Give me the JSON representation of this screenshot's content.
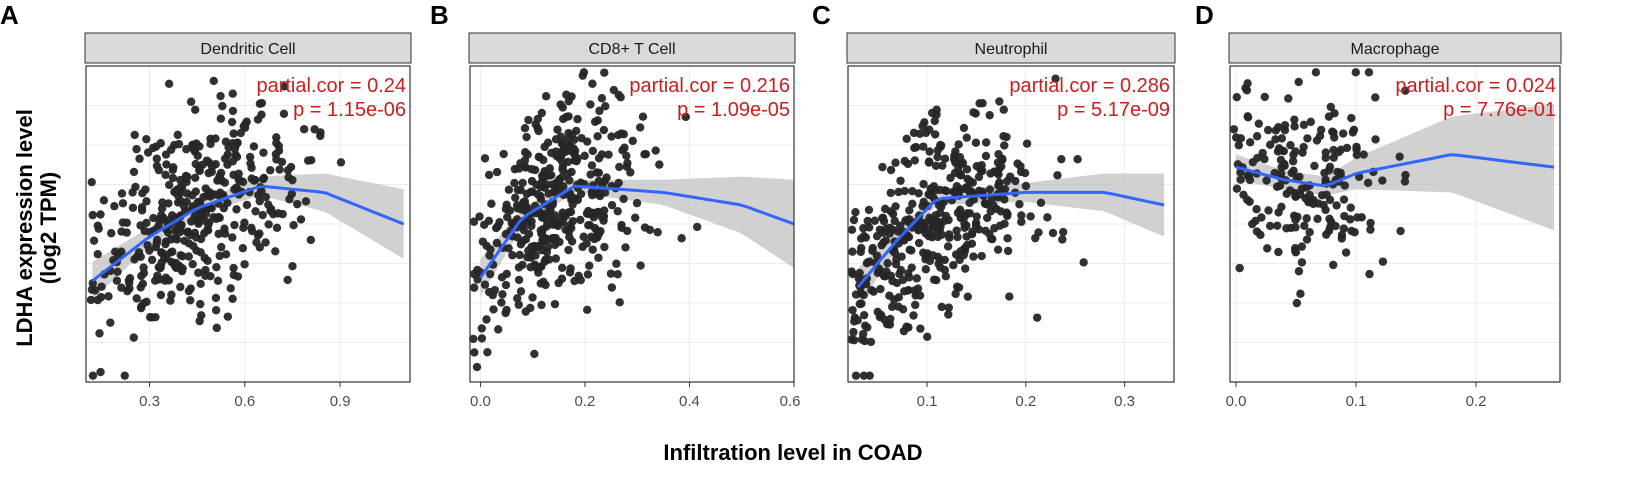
{
  "figure": {
    "ylabel_line1": "LDHA expression level",
    "ylabel_line2": "(log2 TPM)",
    "xlabel": "Infiltration level in COAD"
  },
  "colors": {
    "point": "#262626",
    "smooth": "#3366ff",
    "ribbon": "#bdbdbd",
    "annotation": "#c8201e",
    "strip_fill": "#d9d9d9",
    "grid": "#ebebeb"
  },
  "chart_data": [
    {
      "type": "scatter",
      "panel": "A",
      "title": "Dendritic Cell",
      "xlim": [
        0.1,
        1.12
      ],
      "ylim": [
        0,
        1
      ],
      "xticks": [
        0.3,
        0.6,
        0.9
      ],
      "xtick_labels": [
        "0.3",
        "0.6",
        "0.9"
      ],
      "annotation": [
        "partial.cor = 0.24",
        "p = 1.15e-06"
      ],
      "n_points": 420,
      "x_center": 0.45,
      "x_spread": 0.16,
      "smooth": [
        [
          0.12,
          0.32
        ],
        [
          0.3,
          0.46
        ],
        [
          0.45,
          0.55
        ],
        [
          0.65,
          0.62
        ],
        [
          0.85,
          0.6
        ],
        [
          1.1,
          0.5
        ]
      ],
      "ribbon_halfwidth": [
        0.06,
        0.03,
        0.02,
        0.03,
        0.06,
        0.11
      ]
    },
    {
      "type": "scatter",
      "panel": "B",
      "title": "CD8+ T Cell",
      "xlim": [
        -0.02,
        0.6
      ],
      "ylim": [
        0,
        1
      ],
      "xticks": [
        0.0,
        0.2,
        0.4,
        0.6
      ],
      "xtick_labels": [
        "0.0",
        "0.2",
        "0.4",
        "0.6"
      ],
      "annotation": [
        "partial.cor = 0.216",
        "p = 1.09e-05"
      ],
      "n_points": 420,
      "x_center": 0.15,
      "x_spread": 0.08,
      "smooth": [
        [
          0.0,
          0.33
        ],
        [
          0.08,
          0.52
        ],
        [
          0.18,
          0.62
        ],
        [
          0.35,
          0.6
        ],
        [
          0.5,
          0.56
        ],
        [
          0.6,
          0.5
        ]
      ],
      "ribbon_halfwidth": [
        0.06,
        0.03,
        0.02,
        0.04,
        0.09,
        0.14
      ]
    },
    {
      "type": "scatter",
      "panel": "C",
      "title": "Neutrophil",
      "xlim": [
        0.02,
        0.35
      ],
      "ylim": [
        0,
        1
      ],
      "xticks": [
        0.1,
        0.2,
        0.3
      ],
      "xtick_labels": [
        "0.1",
        "0.2",
        "0.3"
      ],
      "annotation": [
        "partial.cor = 0.286",
        "p = 5.17e-09"
      ],
      "n_points": 420,
      "x_center": 0.11,
      "x_spread": 0.05,
      "smooth": [
        [
          0.03,
          0.3
        ],
        [
          0.07,
          0.45
        ],
        [
          0.11,
          0.58
        ],
        [
          0.2,
          0.6
        ],
        [
          0.28,
          0.6
        ],
        [
          0.34,
          0.56
        ]
      ],
      "ribbon_halfwidth": [
        0.06,
        0.03,
        0.02,
        0.03,
        0.06,
        0.1
      ]
    },
    {
      "type": "scatter",
      "panel": "D",
      "title": "Macrophage",
      "xlim": [
        -0.005,
        0.27
      ],
      "ylim": [
        0,
        1
      ],
      "xticks": [
        0.0,
        0.1,
        0.2
      ],
      "xtick_labels": [
        "0.0",
        "0.1",
        "0.2"
      ],
      "annotation": [
        "partial.cor = 0.024",
        "p = 7.76e-01"
      ],
      "n_points": 200,
      "x_center": 0.055,
      "x_spread": 0.035,
      "smooth": [
        [
          0.0,
          0.68
        ],
        [
          0.04,
          0.64
        ],
        [
          0.075,
          0.62
        ],
        [
          0.1,
          0.66
        ],
        [
          0.18,
          0.72
        ],
        [
          0.265,
          0.68
        ]
      ],
      "ribbon_halfwidth": [
        0.04,
        0.03,
        0.03,
        0.05,
        0.12,
        0.2
      ]
    }
  ]
}
